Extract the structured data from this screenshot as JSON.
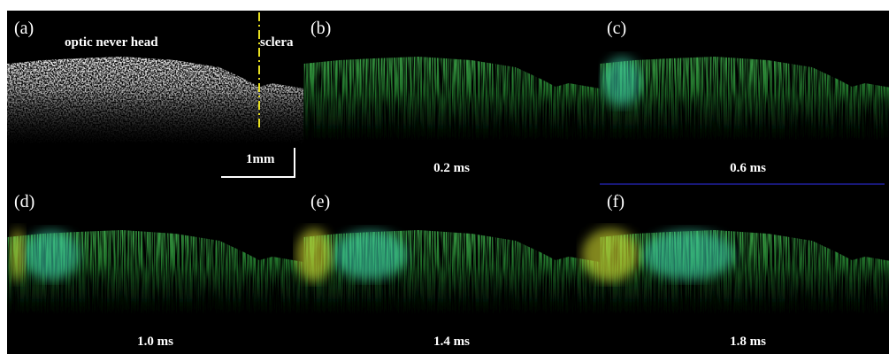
{
  "panels": [
    {
      "label": "(a)",
      "region_label": "optic never head",
      "side_label": "sclera",
      "scale_bar": "1mm"
    },
    {
      "label": "(b)",
      "time": "0.2 ms"
    },
    {
      "label": "(c)",
      "time": "0.6 ms"
    },
    {
      "label": "(d)",
      "time": "1.0 ms"
    },
    {
      "label": "(e)",
      "time": "1.4 ms"
    },
    {
      "label": "(f)",
      "time": "1.8 ms"
    }
  ]
}
